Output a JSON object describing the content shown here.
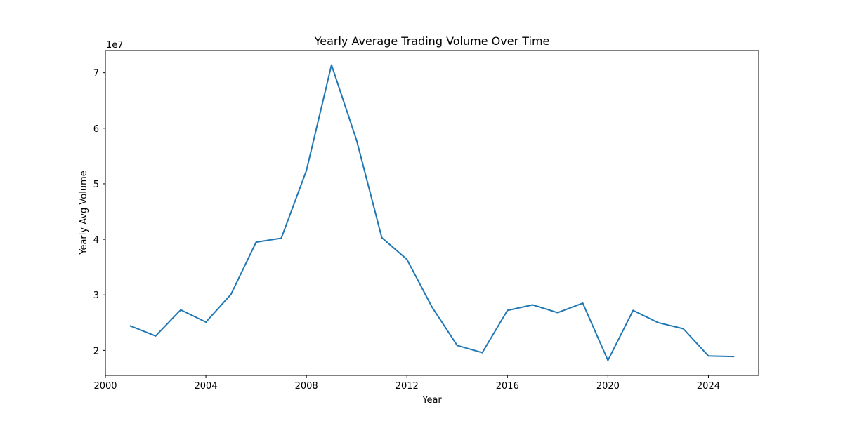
{
  "chart_data": {
    "type": "line",
    "title": "Yearly Average Trading Volume Over Time",
    "xlabel": "Year",
    "ylabel": "Yearly Avg Volume",
    "offset_label": "1e7",
    "xlim": [
      2000,
      2026
    ],
    "ylim": [
      15500000,
      74000000
    ],
    "x_ticks": [
      2000,
      2004,
      2008,
      2012,
      2016,
      2020,
      2024
    ],
    "x_tick_labels": [
      "2000",
      "2004",
      "2008",
      "2012",
      "2016",
      "2020",
      "2024"
    ],
    "y_ticks": [
      20000000,
      30000000,
      40000000,
      50000000,
      60000000,
      70000000
    ],
    "y_tick_labels": [
      "2",
      "3",
      "4",
      "5",
      "6",
      "7"
    ],
    "grid": false,
    "series": [
      {
        "color": "#1f77b4",
        "x": [
          2001,
          2002,
          2003,
          2004,
          2005,
          2006,
          2007,
          2008,
          2009,
          2010,
          2011,
          2012,
          2013,
          2014,
          2015,
          2016,
          2017,
          2018,
          2019,
          2020,
          2021,
          2022,
          2023,
          2024,
          2025
        ],
        "y": [
          24400000,
          22600000,
          27300000,
          25100000,
          30100000,
          39500000,
          40200000,
          52400000,
          71400000,
          57800000,
          40300000,
          36400000,
          27800000,
          20900000,
          19600000,
          27200000,
          28200000,
          26800000,
          28500000,
          18200000,
          27200000,
          25000000,
          23900000,
          19000000,
          18900000
        ]
      }
    ]
  }
}
